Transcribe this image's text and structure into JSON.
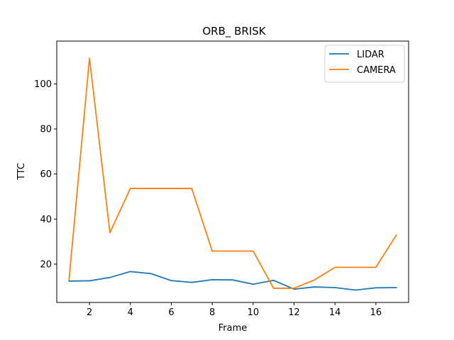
{
  "chart_data": {
    "type": "line",
    "title": "ORB_ BRISK",
    "xlabel": "Frame",
    "ylabel": "TTC",
    "xlim": [
      0.4,
      17.6
    ],
    "ylim": [
      3.0,
      119.0
    ],
    "xticks": [
      2,
      4,
      6,
      8,
      10,
      12,
      14,
      16
    ],
    "yticks": [
      20,
      40,
      60,
      80,
      100
    ],
    "grid": false,
    "legend_position": "top-right",
    "x": [
      1,
      2,
      3,
      4,
      5,
      6,
      7,
      8,
      9,
      10,
      11,
      12,
      13,
      14,
      15,
      16,
      17
    ],
    "series": [
      {
        "name": "LIDAR",
        "color": "#1f77b4",
        "values": [
          12.5,
          12.6,
          14.1,
          16.7,
          15.8,
          12.7,
          11.9,
          13.1,
          13.0,
          11.1,
          12.8,
          8.9,
          9.9,
          9.6,
          8.5,
          9.5,
          9.6
        ]
      },
      {
        "name": "CAMERA",
        "color": "#ff7f0e",
        "values": [
          13.0,
          111.4,
          34.0,
          53.6,
          53.6,
          53.6,
          53.6,
          25.8,
          25.8,
          25.8,
          9.3,
          9.3,
          13.0,
          18.6,
          18.6,
          18.6,
          32.9
        ]
      }
    ]
  }
}
